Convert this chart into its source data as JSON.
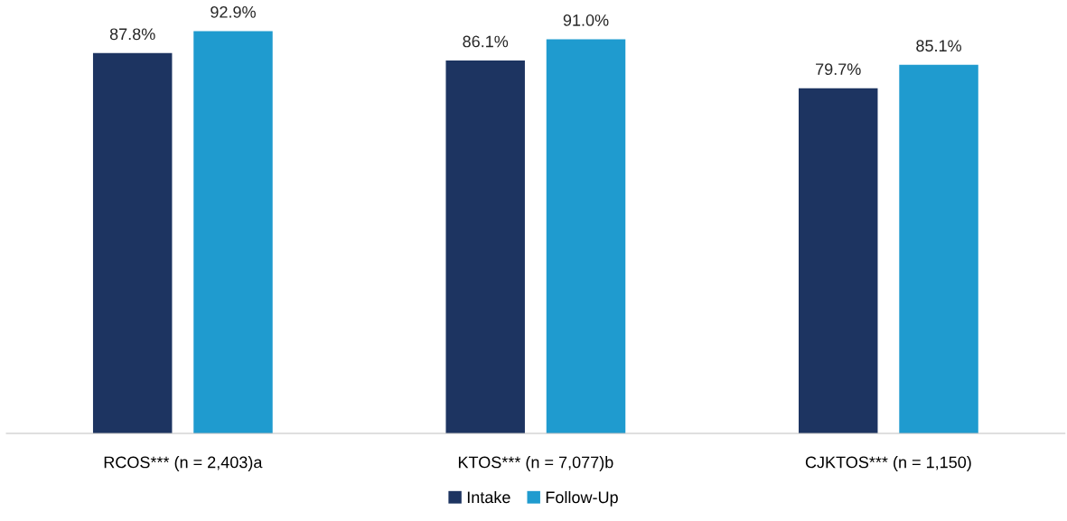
{
  "chart_data": {
    "type": "bar",
    "categories": [
      "RCOS*** (n = 2,403)a",
      "KTOS*** (n = 7,077)b",
      "CJKTOS*** (n = 1,150)"
    ],
    "series": [
      {
        "name": "Intake",
        "color": "#1d3461",
        "values": [
          87.8,
          86.1,
          79.7
        ],
        "value_labels": [
          "87.8%",
          "86.1%",
          "79.7%"
        ]
      },
      {
        "name": "Follow-Up",
        "color": "#1f9bcf",
        "values": [
          92.9,
          91.0,
          85.1
        ],
        "value_labels": [
          "92.9%",
          "91.0%",
          "85.1%"
        ]
      }
    ],
    "tick_labels": "x",
    "grid": false,
    "legend": "bottom"
  }
}
